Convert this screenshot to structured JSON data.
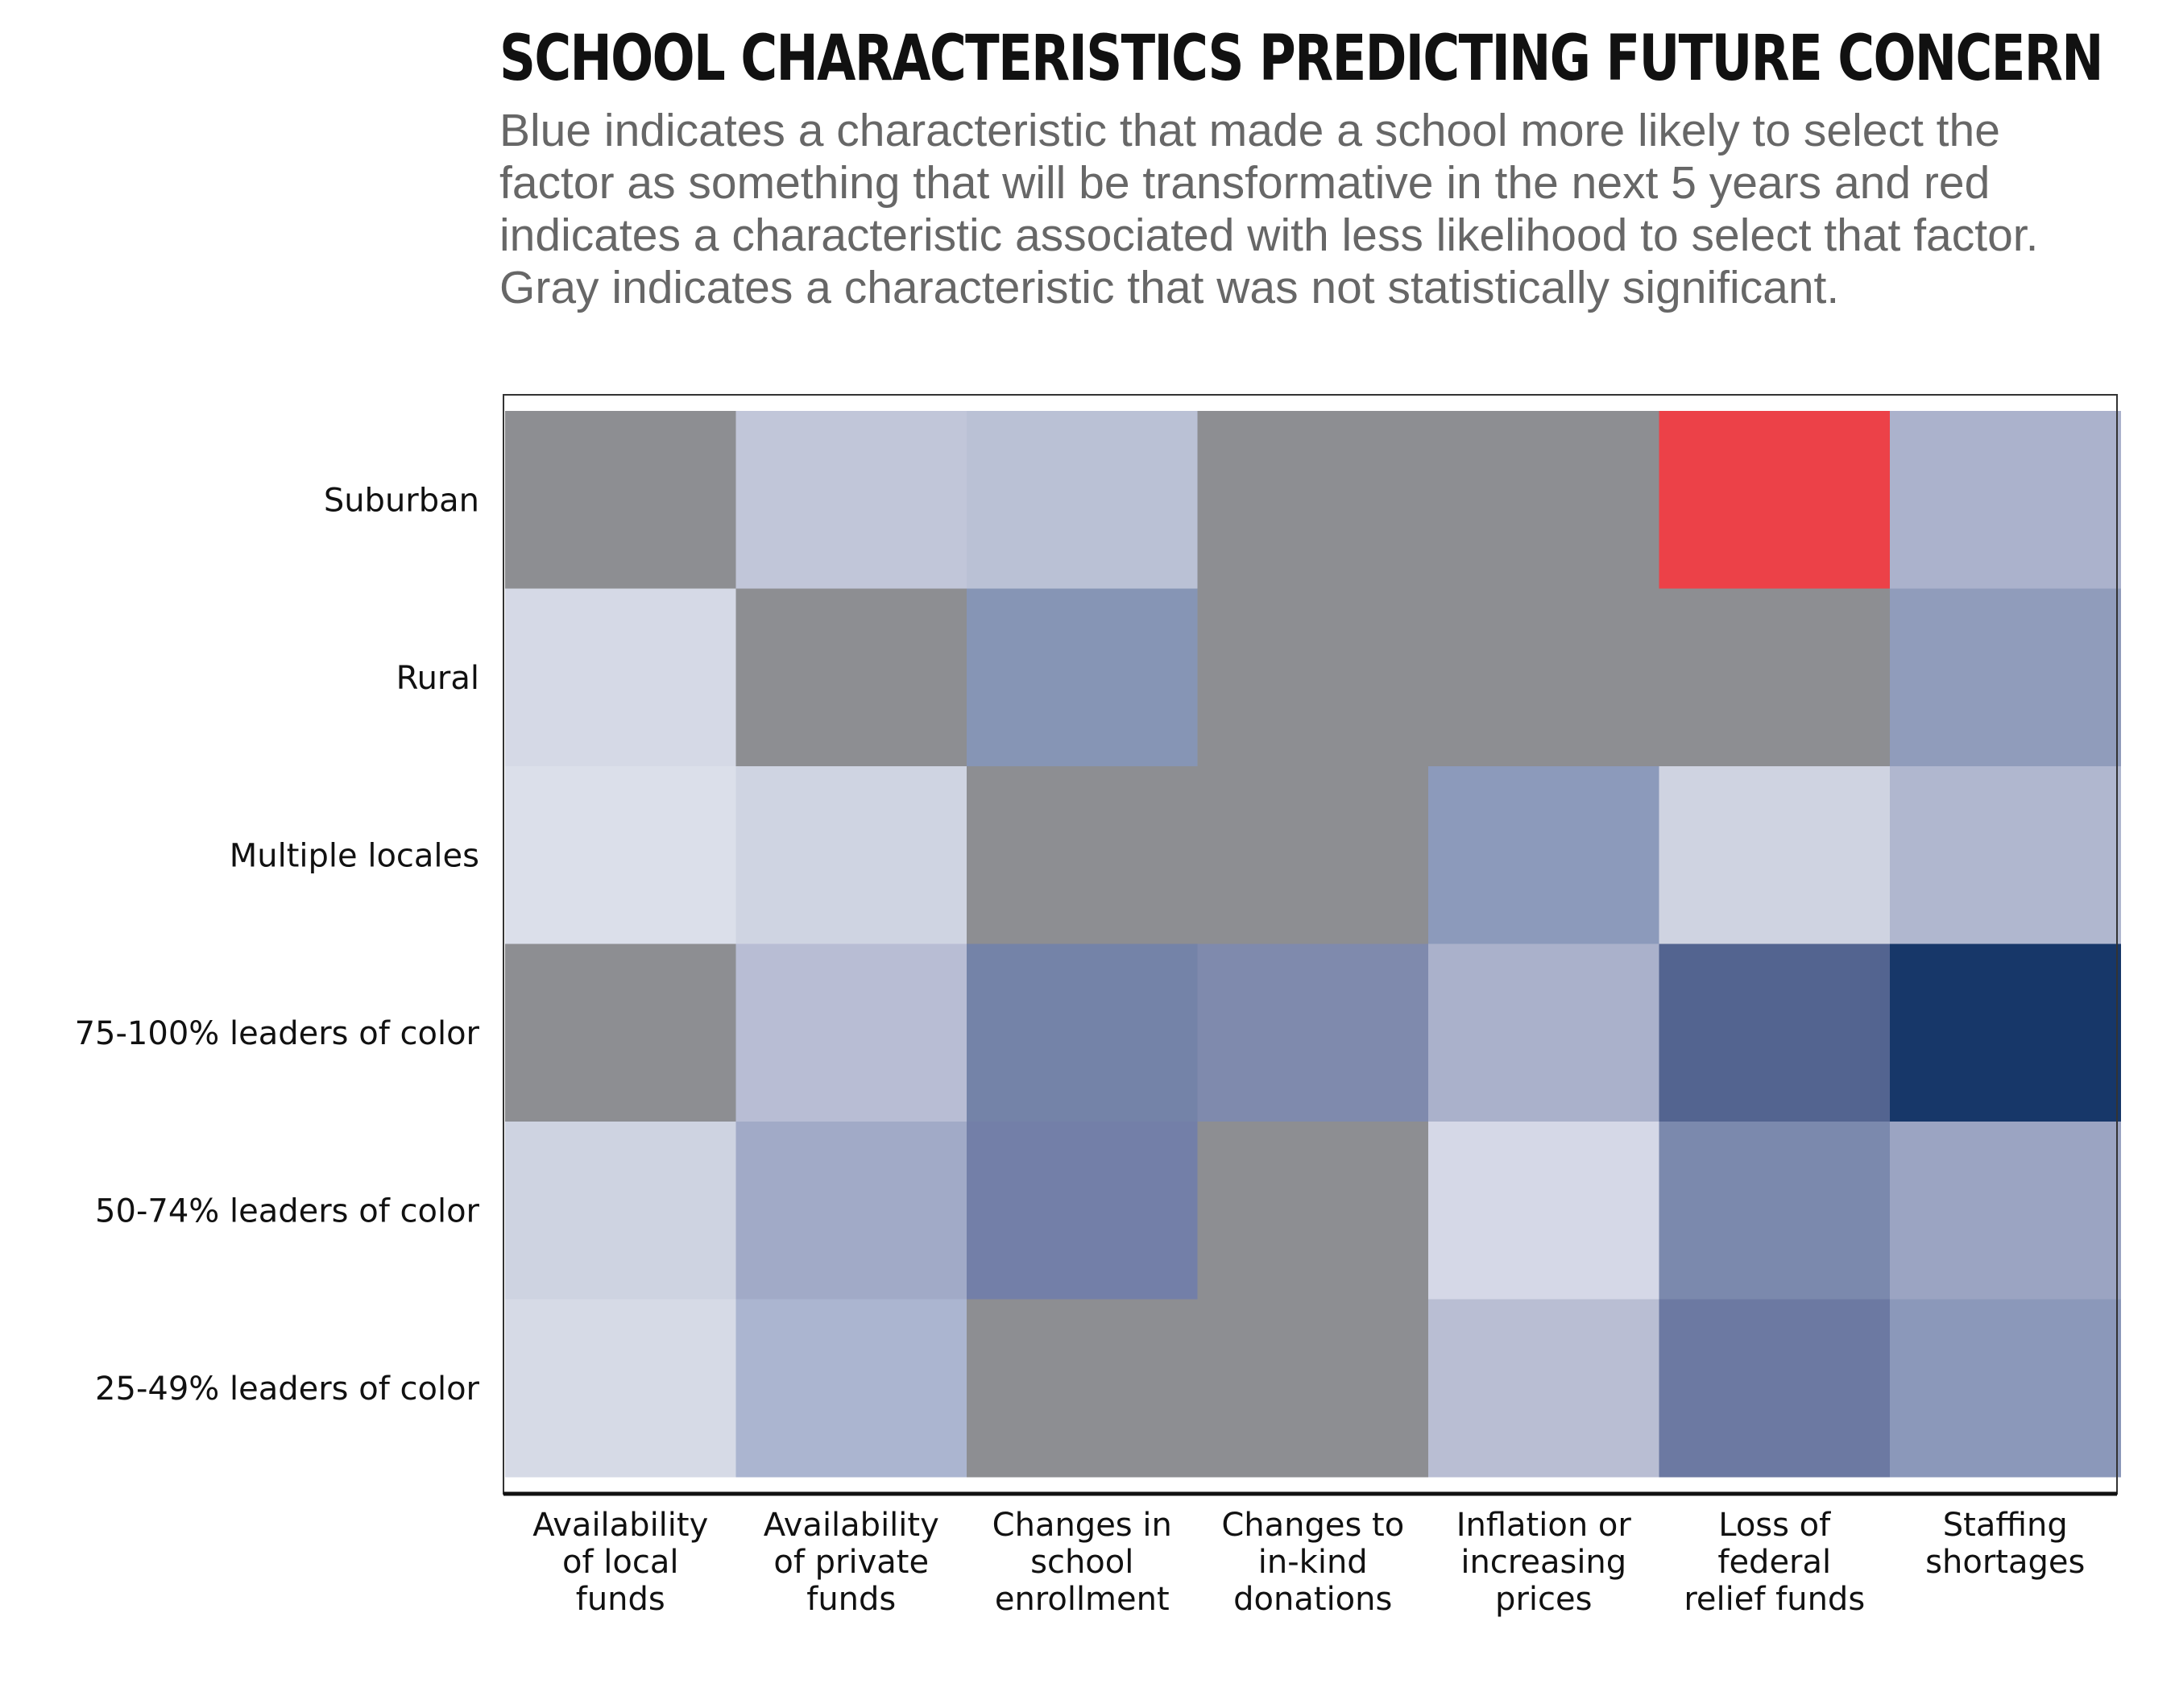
{
  "chart_data": {
    "type": "heatmap",
    "title": "SCHOOL CHARACTERISTICS PREDICTING FUTURE CONCERN",
    "subtitle": "Blue indicates a characteristic that made a school more likely to select the factor as something that will be transformative in the next 5 years and red indicates a characteristic associated with less likelihood to select that factor. Gray indicates a characteristic that was not statistically significant.",
    "rows": [
      "Suburban",
      "Rural",
      "Multiple locales",
      "75-100% leaders of color",
      "50-74% leaders of color",
      "25-49% leaders of color"
    ],
    "columns": [
      [
        "Availability",
        "of local",
        "funds"
      ],
      [
        "Availability",
        "of private",
        "funds"
      ],
      [
        "Changes in",
        "school",
        "enrollment"
      ],
      [
        "Changes to",
        "in-kind",
        "donations"
      ],
      [
        "Inflation or",
        "increasing",
        "prices"
      ],
      [
        "Loss of",
        "federal",
        "relief funds"
      ],
      [
        "Staffing",
        "shortages"
      ]
    ],
    "cell_colors": [
      [
        "#8d8e92",
        "#c1c6d9",
        "#bac1d5",
        "#8d8e92",
        "#8d8e92",
        "#ec4148",
        "#abb2cc"
      ],
      [
        "#d5d9e6",
        "#8d8e92",
        "#8695b5",
        "#8d8e92",
        "#8d8e92",
        "#8d8e92",
        "#909cbb"
      ],
      [
        "#dbdfea",
        "#cfd4e2",
        "#8d8e92",
        "#8d8e92",
        "#8c9abb",
        "#cfd3e1",
        "#b0b7cf"
      ],
      [
        "#8d8e92",
        "#b8bdd4",
        "#7483a8",
        "#7f8aad",
        "#aab1cb",
        "#536490",
        "#173769"
      ],
      [
        "#ced3e1",
        "#a1aac7",
        "#737fa8",
        "#8d8e92",
        "#d5d8e7",
        "#7b89ad",
        "#9ba4c2"
      ],
      [
        "#d6dae6",
        "#abb5d0",
        "#8d8e92",
        "#8d8e92",
        "#b9bed3",
        "#6c79a2",
        "#8b98ba"
      ]
    ],
    "legend": {
      "blue": "more likely",
      "red": "less likely",
      "gray": "not statistically significant"
    },
    "grid": false
  }
}
